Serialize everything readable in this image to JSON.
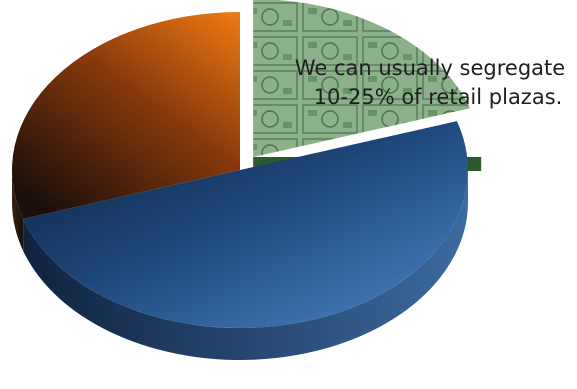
{
  "chart_data": {
    "type": "pie",
    "title": "",
    "style": "3d-exploded",
    "slices": [
      {
        "value": 20,
        "color": "#3f7d4a",
        "exploded": true
      },
      {
        "value": 50,
        "color": "#2b5f9a",
        "exploded": false
      },
      {
        "value": 30,
        "color": "#e06a12",
        "exploded": false
      }
    ],
    "annotations": [
      {
        "line1": "We can usually segregate",
        "line2": "10-25% of retail plazas."
      }
    ]
  }
}
